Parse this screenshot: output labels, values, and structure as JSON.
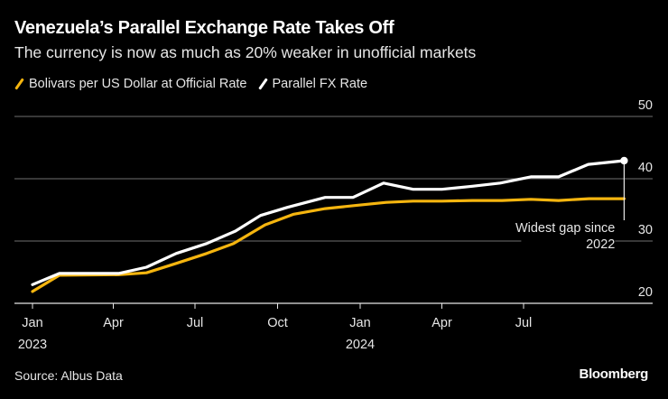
{
  "header": {
    "title": "Venezuela’s Parallel Exchange Rate Takes Off",
    "subtitle": "The currency is now as much as 20% weaker in unofficial markets"
  },
  "legend": [
    {
      "label": "Bolivars per US Dollar at Official Rate",
      "color": "#f5b50f"
    },
    {
      "label": "Parallel FX Rate",
      "color": "#ffffff"
    }
  ],
  "footer": {
    "source": "Source: Albus Data",
    "brand": "Bloomberg"
  },
  "chart_data": {
    "type": "line",
    "title": "Venezuela’s Parallel Exchange Rate Takes Off",
    "subtitle": "The currency is now as much as 20% weaker in unofficial markets",
    "xlabel": "",
    "ylabel": "",
    "ylim": [
      20,
      50
    ],
    "y_ticks": [
      20,
      30,
      40,
      50
    ],
    "y_axis_side": "right",
    "grid": true,
    "legend_position": "top-left",
    "x_ticks": [
      {
        "date": "2023-01-01",
        "label": "Jan",
        "sublabel": "2023"
      },
      {
        "date": "2023-04-01",
        "label": "Apr",
        "sublabel": ""
      },
      {
        "date": "2023-07-01",
        "label": "Jul",
        "sublabel": ""
      },
      {
        "date": "2023-10-01",
        "label": "Oct",
        "sublabel": ""
      },
      {
        "date": "2024-01-01",
        "label": "Jan",
        "sublabel": "2024"
      },
      {
        "date": "2024-04-01",
        "label": "Apr",
        "sublabel": ""
      },
      {
        "date": "2024-07-01",
        "label": "Jul",
        "sublabel": ""
      }
    ],
    "x_range": [
      "2022-12-20",
      "2024-10-20"
    ],
    "series": [
      {
        "name": "Bolivars per US Dollar at Official Rate",
        "color": "#f5b50f",
        "points": [
          [
            "2023-01-01",
            21.9
          ],
          [
            "2023-01-31",
            24.5
          ],
          [
            "2023-04-07",
            24.6
          ],
          [
            "2023-05-08",
            24.9
          ],
          [
            "2023-06-10",
            26.4
          ],
          [
            "2023-07-14",
            28.0
          ],
          [
            "2023-08-13",
            29.6
          ],
          [
            "2023-09-17",
            32.6
          ],
          [
            "2023-10-19",
            34.3
          ],
          [
            "2023-11-23",
            35.2
          ],
          [
            "2023-12-26",
            35.7
          ],
          [
            "2024-01-30",
            36.2
          ],
          [
            "2024-02-29",
            36.4
          ],
          [
            "2024-04-01",
            36.4
          ],
          [
            "2024-05-05",
            36.5
          ],
          [
            "2024-06-07",
            36.5
          ],
          [
            "2024-07-09",
            36.7
          ],
          [
            "2024-08-09",
            36.5
          ],
          [
            "2024-09-12",
            36.8
          ],
          [
            "2024-10-21",
            36.8
          ]
        ]
      },
      {
        "name": "Parallel FX Rate",
        "color": "#ffffff",
        "points": [
          [
            "2023-01-01",
            23.0
          ],
          [
            "2023-01-31",
            24.8
          ],
          [
            "2023-04-07",
            24.8
          ],
          [
            "2023-05-08",
            25.8
          ],
          [
            "2023-06-10",
            28.0
          ],
          [
            "2023-07-14",
            29.6
          ],
          [
            "2023-08-15",
            31.6
          ],
          [
            "2023-09-12",
            34.1
          ],
          [
            "2023-10-12",
            35.4
          ],
          [
            "2023-11-23",
            37.0
          ],
          [
            "2023-12-24",
            37.0
          ],
          [
            "2024-01-27",
            39.3
          ],
          [
            "2024-02-29",
            38.3
          ],
          [
            "2024-04-01",
            38.3
          ],
          [
            "2024-05-05",
            38.8
          ],
          [
            "2024-06-05",
            39.3
          ],
          [
            "2024-07-09",
            40.3
          ],
          [
            "2024-08-09",
            40.3
          ],
          [
            "2024-09-11",
            42.3
          ],
          [
            "2024-10-21",
            42.9
          ]
        ]
      }
    ],
    "annotations": [
      {
        "text_lines": [
          "Widest gap since",
          "2022"
        ],
        "date": "2024-10-21",
        "from_value": 42.9,
        "to_value": 36.8
      }
    ]
  }
}
